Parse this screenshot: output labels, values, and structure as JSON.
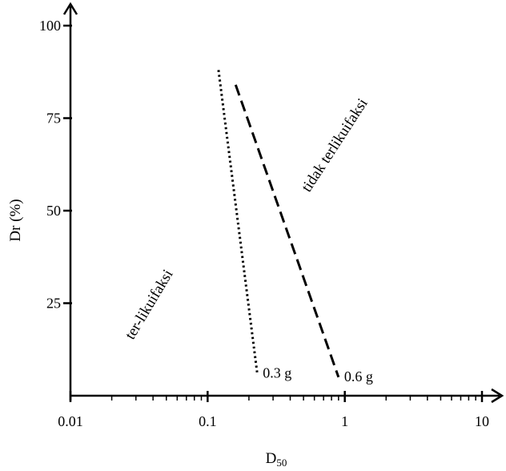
{
  "chart_data": {
    "type": "line",
    "title": "",
    "xlabel": "D",
    "xlabel_subscript": "50",
    "ylabel": "Dr (%)",
    "xscale": "log",
    "xlim": [
      0.01,
      10
    ],
    "ylim": [
      0,
      100
    ],
    "xticks": [
      {
        "value": 0.01,
        "label": "0.01"
      },
      {
        "value": 0.1,
        "label": "0.1"
      },
      {
        "value": 1,
        "label": "1"
      },
      {
        "value": 10,
        "label": "10"
      }
    ],
    "yticks": [
      {
        "value": 25,
        "label": "25"
      },
      {
        "value": 50,
        "label": "50"
      },
      {
        "value": 75,
        "label": "75"
      },
      {
        "value": 100,
        "label": "100"
      }
    ],
    "grid": false,
    "series": [
      {
        "name": "0.3 g",
        "style": "dotted",
        "x": [
          0.12,
          0.23
        ],
        "y": [
          88,
          6
        ]
      },
      {
        "name": "0.6 g",
        "style": "dashed",
        "x": [
          0.16,
          0.9
        ],
        "y": [
          84,
          5
        ]
      }
    ],
    "annotations": [
      {
        "text": "ter-likuifaksi",
        "x": 0.04,
        "y": 24
      },
      {
        "text": "tidak terlikuifaksi",
        "x": 0.9,
        "y": 67
      }
    ]
  }
}
